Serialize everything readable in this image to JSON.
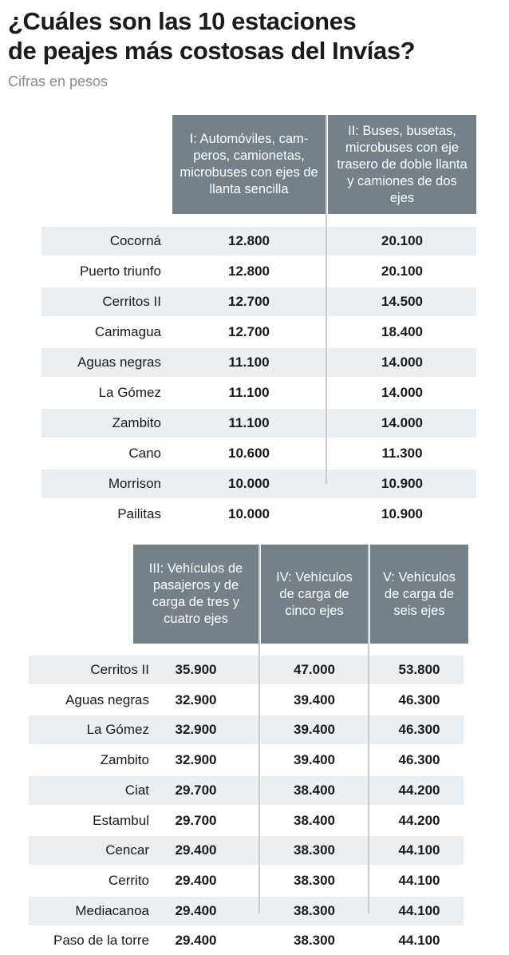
{
  "title": "¿Cuáles son las 10 estaciones de peajes más costosas del Invías?",
  "title_lines": [
    "¿Cuáles son las 10 estaciones",
    "de peajes más costosas del Invías?"
  ],
  "subtitle": "Cifras en pesos",
  "colors": {
    "header_bg": "#74818a",
    "stripe": "#e9eff3",
    "divider": "#c6ccd0"
  },
  "table1": {
    "headers": [
      "I: Automóviles, cam-peros, camionetas, microbuses con ejes de llanta sencilla",
      "II: Buses, busetas, microbuses con eje trasero de doble llanta y camiones de dos ejes"
    ],
    "rows": [
      {
        "name": "Cocorná",
        "v1": "12.800",
        "v2": "20.100"
      },
      {
        "name": "Puerto triunfo",
        "v1": "12.800",
        "v2": "20.100"
      },
      {
        "name": "Cerritos II",
        "v1": "12.700",
        "v2": "14.500"
      },
      {
        "name": "Carimagua",
        "v1": "12.700",
        "v2": "18.400"
      },
      {
        "name": "Aguas negras",
        "v1": "11.100",
        "v2": "14.000"
      },
      {
        "name": "La Gómez",
        "v1": "11.100",
        "v2": "14.000"
      },
      {
        "name": "Zambito",
        "v1": "11.100",
        "v2": "14.000"
      },
      {
        "name": "Cano",
        "v1": "10.600",
        "v2": "11.300"
      },
      {
        "name": "Morrison",
        "v1": "10.000",
        "v2": "10.900"
      },
      {
        "name": "Pailitas",
        "v1": "10.000",
        "v2": "10.900"
      }
    ]
  },
  "table2": {
    "headers": [
      "III: Vehículos de pasajeros y de carga de tres y cuatro ejes",
      "IV: Vehículos de carga de cinco ejes",
      "V: Vehículos de carga de seis ejes"
    ],
    "rows": [
      {
        "name": "Cerritos II",
        "v1": "35.900",
        "v2": "47.000",
        "v3": "53.800"
      },
      {
        "name": "Aguas negras",
        "v1": "32.900",
        "v2": "39.400",
        "v3": "46.300"
      },
      {
        "name": "La Gómez",
        "v1": "32.900",
        "v2": "39.400",
        "v3": "46.300"
      },
      {
        "name": "Zambito",
        "v1": "32.900",
        "v2": "39.400",
        "v3": "46.300"
      },
      {
        "name": "Ciat",
        "v1": "29.700",
        "v2": "38.400",
        "v3": "44.200"
      },
      {
        "name": "Estambul",
        "v1": "29.700",
        "v2": "38.400",
        "v3": "44.200"
      },
      {
        "name": "Cencar",
        "v1": "29.400",
        "v2": "38.300",
        "v3": "44.100"
      },
      {
        "name": "Cerrito",
        "v1": "29.400",
        "v2": "38.300",
        "v3": "44.100"
      },
      {
        "name": "Mediacanoa",
        "v1": "29.400",
        "v2": "38.300",
        "v3": "44.100"
      },
      {
        "name": "Paso de la torre",
        "v1": "29.400",
        "v2": "38.300",
        "v3": "44.100"
      }
    ]
  }
}
